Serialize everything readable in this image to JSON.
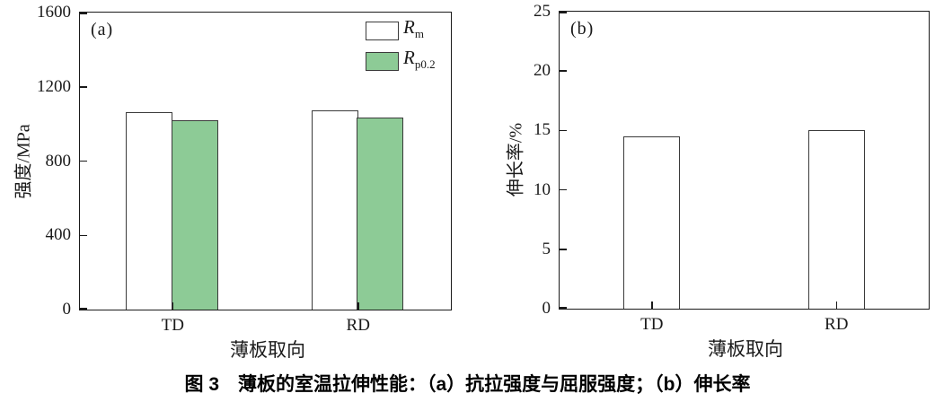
{
  "caption": "图 3　薄板的室温拉伸性能：（a）抗拉强度与屈服强度；（b）伸长率",
  "colors": {
    "axis": "#1a1a1a",
    "bar_border": "#3a3a3a",
    "bar_white": "#ffffff",
    "bar_green": "#8dcb96"
  },
  "chart_data": [
    {
      "type": "bar",
      "panel_tag": "(a)",
      "title": "",
      "xlabel": "薄板取向",
      "ylabel": "强度/MPa",
      "ylim": [
        0,
        1600
      ],
      "yticks": [
        0,
        400,
        800,
        1200,
        1600
      ],
      "categories": [
        "TD",
        "RD"
      ],
      "series": [
        {
          "name": "Rm",
          "legend_main": "R",
          "legend_sub": "m",
          "fill": "#ffffff",
          "values": [
            1065,
            1072
          ]
        },
        {
          "name": "Rp0.2",
          "legend_main": "R",
          "legend_sub": "p0.2",
          "fill": "#8dcb96",
          "values": [
            1020,
            1035
          ]
        }
      ],
      "legend_position": "top-right",
      "grid": false
    },
    {
      "type": "bar",
      "panel_tag": "(b)",
      "title": "",
      "xlabel": "薄板取向",
      "ylabel": "伸长率/%",
      "ylim": [
        0,
        25
      ],
      "yticks": [
        0,
        5,
        10,
        15,
        20,
        25
      ],
      "categories": [
        "TD",
        "RD"
      ],
      "series": [
        {
          "name": "elongation",
          "fill": "#ffffff",
          "values": [
            14.5,
            15.0
          ]
        }
      ],
      "legend_position": null,
      "grid": false
    }
  ]
}
